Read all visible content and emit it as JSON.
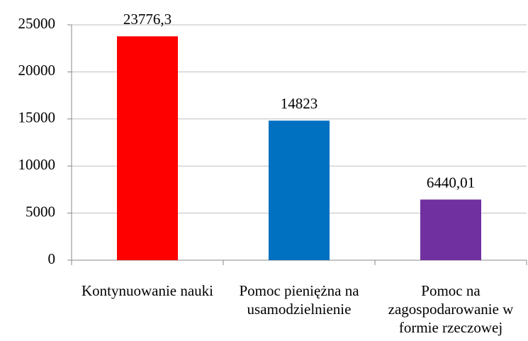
{
  "chart_data": {
    "type": "bar",
    "categories": [
      "Kontynuowanie nauki",
      "Pomoc pieniężna na usamodzielnienie",
      "Pomoc na zagospodarowanie w formie rzeczowej"
    ],
    "values": [
      23776.3,
      14823,
      6440.01
    ],
    "value_labels": [
      "23776,3",
      "14823",
      "6440,01"
    ],
    "colors": [
      "#ff0000",
      "#0070c0",
      "#7030a0"
    ],
    "ylim": [
      0,
      25000
    ],
    "yticks": [
      0,
      5000,
      10000,
      15000,
      20000,
      25000
    ],
    "grid": true
  }
}
